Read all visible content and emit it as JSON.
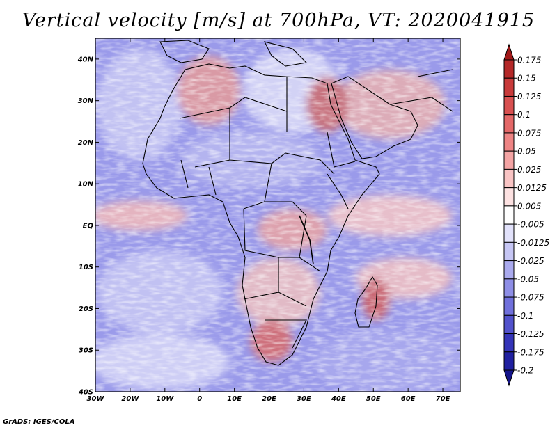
{
  "title": "Vertical velocity [m/s] at 700hPa, VT: 2020041915",
  "credit": "GrADS: IGES/COLA",
  "map": {
    "lon_range": [
      -30,
      75
    ],
    "lat_range": [
      -40,
      45
    ],
    "lon_ticks": [
      {
        "value": -30,
        "label": "30W"
      },
      {
        "value": -20,
        "label": "20W"
      },
      {
        "value": -10,
        "label": "10W"
      },
      {
        "value": 0,
        "label": "0"
      },
      {
        "value": 10,
        "label": "10E"
      },
      {
        "value": 20,
        "label": "20E"
      },
      {
        "value": 30,
        "label": "30E"
      },
      {
        "value": 40,
        "label": "40E"
      },
      {
        "value": 50,
        "label": "50E"
      },
      {
        "value": 60,
        "label": "60E"
      },
      {
        "value": 70,
        "label": "70E"
      }
    ],
    "lat_ticks": [
      {
        "value": 40,
        "label": "40N"
      },
      {
        "value": 30,
        "label": "30N"
      },
      {
        "value": 20,
        "label": "20N"
      },
      {
        "value": 10,
        "label": "10N"
      },
      {
        "value": 0,
        "label": "EQ"
      },
      {
        "value": -10,
        "label": "10S"
      },
      {
        "value": -20,
        "label": "20S"
      },
      {
        "value": -30,
        "label": "30S"
      },
      {
        "value": -40,
        "label": "40S"
      }
    ]
  },
  "colorbar": {
    "labels": [
      "0.175",
      "0.15",
      "0.125",
      "0.1",
      "0.075",
      "0.05",
      "0.025",
      "0.0125",
      "0.005",
      "-0.005",
      "-0.0125",
      "-0.025",
      "-0.05",
      "-0.075",
      "-0.1",
      "-0.125",
      "-0.175",
      "-0.2"
    ],
    "colors": [
      "#a01818",
      "#b42828",
      "#c83a3a",
      "#d85050",
      "#e46868",
      "#ee8484",
      "#f4a4a4",
      "#f9c4c4",
      "#fde2e2",
      "#ffffff",
      "#e2e2fb",
      "#c6c6f4",
      "#aaaaee",
      "#8e8ee6",
      "#7070dc",
      "#5252cc",
      "#3434b8",
      "#2020a0",
      "#14148a"
    ]
  }
}
